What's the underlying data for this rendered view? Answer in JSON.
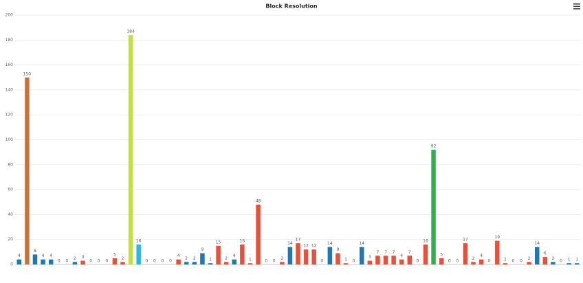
{
  "chart_data": {
    "type": "bar",
    "title": "Block Resolution",
    "categories": [
      null,
      null,
      null,
      null,
      null,
      null,
      null,
      null,
      null,
      null,
      null,
      null,
      null,
      null,
      null,
      null,
      null,
      null,
      null,
      null,
      null,
      null,
      null,
      null,
      null,
      null,
      null,
      null,
      null,
      null,
      null,
      null,
      null,
      null,
      null,
      null,
      null,
      null,
      null,
      null,
      null,
      null,
      null,
      null,
      null,
      null,
      null,
      null,
      null,
      null,
      null,
      null,
      null,
      null,
      null,
      null,
      null,
      null,
      null,
      null,
      null,
      null,
      null,
      null,
      null,
      null,
      null,
      null,
      null,
      null,
      null
    ],
    "values": [
      4,
      150,
      8,
      4,
      4,
      0,
      0,
      2,
      3,
      0,
      0,
      0,
      5,
      2,
      184,
      16,
      0,
      0,
      0,
      0,
      4,
      2,
      2,
      9,
      1,
      15,
      2,
      4,
      16,
      1,
      48,
      0,
      0,
      2,
      14,
      17,
      12,
      12,
      0,
      14,
      9,
      1,
      0,
      14,
      3,
      7,
      7,
      7,
      4,
      7,
      0,
      16,
      92,
      5,
      0,
      0,
      17,
      2,
      4,
      0,
      19,
      1,
      0,
      0,
      2,
      14,
      6,
      2,
      0,
      1,
      1
    ],
    "colors": [
      "#1f77b4",
      "#c8733a",
      "#1f77b4",
      "#1f77b4",
      "#1f77b4",
      "#1f77b4",
      "#1f77b4",
      "#1f77b4",
      "#e8503a",
      "#e8503a",
      "#e8503a",
      "#e8503a",
      "#e8503a",
      "#e8503a",
      "#c5e03a",
      "#29b6e8",
      "#1f77b4",
      "#1f77b4",
      "#1f77b4",
      "#1f77b4",
      "#e8503a",
      "#1f77b4",
      "#1f77b4",
      "#1f77b4",
      "#1f77b4",
      "#e8503a",
      "#e8503a",
      "#1f77b4",
      "#e8503a",
      "#e8503a",
      "#e8503a",
      "#e8503a",
      "#e8503a",
      "#e8503a",
      "#1f77b4",
      "#e8503a",
      "#e8503a",
      "#e8503a",
      "#e8503a",
      "#1f77b4",
      "#e8503a",
      "#e8503a",
      "#e8503a",
      "#1f77b4",
      "#e8503a",
      "#e8503a",
      "#e8503a",
      "#e8503a",
      "#e8503a",
      "#e8503a",
      "#e8503a",
      "#e8503a",
      "#2db34a",
      "#e8503a",
      "#e8503a",
      "#e8503a",
      "#e8503a",
      "#e8503a",
      "#e8503a",
      "#e8503a",
      "#e8503a",
      "#e8503a",
      "#e8503a",
      "#e8503a",
      "#e8503a",
      "#1f77b4",
      "#e8503a",
      "#1f77b4",
      "#1f77b4",
      "#1f77b4",
      "#1f77b4"
    ],
    "ylim": [
      0,
      200
    ],
    "yticks": [
      0,
      20,
      40,
      60,
      80,
      100,
      120,
      140,
      160,
      180,
      200
    ],
    "grid": true
  }
}
